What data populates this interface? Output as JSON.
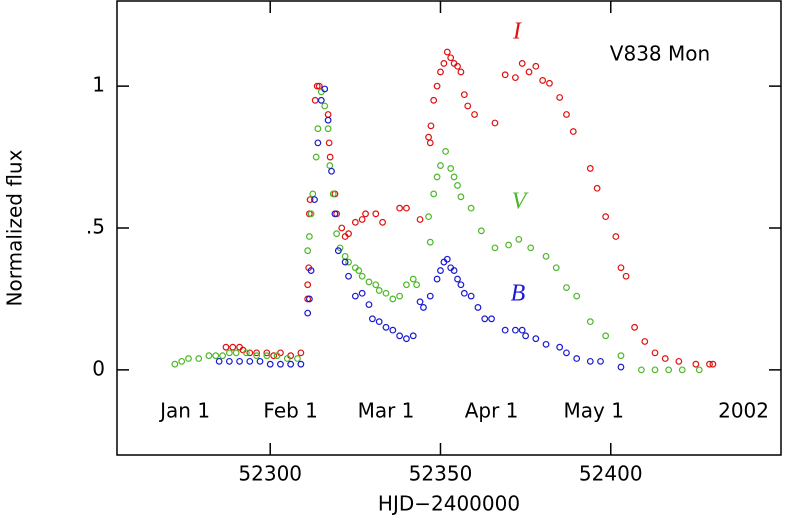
{
  "chart_data": {
    "type": "scatter",
    "annotation": "V838 Mon",
    "xlabel": "HJD−2400000",
    "ylabel": "Normalized flux",
    "xlim": [
      52255,
      52450
    ],
    "ylim": [
      -0.3,
      1.3
    ],
    "xticks": [
      52300,
      52350,
      52400
    ],
    "yticks": [
      0,
      {
        "value": 0.5,
        "label": ".5"
      },
      1
    ],
    "date_labels": [
      {
        "value": 52275,
        "label": "Jan 1"
      },
      {
        "value": 52306,
        "label": "Feb 1"
      },
      {
        "value": 52334,
        "label": "Mar 1"
      },
      {
        "value": 52365,
        "label": "Apr 1"
      },
      {
        "value": 52395,
        "label": "May 1"
      }
    ],
    "year_label": "2002",
    "series": [
      {
        "name": "I",
        "color": "#e01010",
        "x": [
          52287,
          52289,
          52291,
          52292,
          52294,
          52296,
          52299,
          52301,
          52303,
          52306,
          52309,
          52311,
          52311,
          52311.3,
          52311.5,
          52311.7,
          52313.2,
          52313.8,
          52314.4,
          52317,
          52317.3,
          52317.6,
          52319,
          52319.5,
          52321,
          52322,
          52323,
          52325,
          52327,
          52328,
          52331,
          52333,
          52338,
          52340,
          52344,
          52346.5,
          52347,
          52347.2,
          52348,
          52349,
          52350,
          52351,
          52352,
          52353,
          52354,
          52355,
          52356,
          52357,
          52358,
          52360,
          52366,
          52369,
          52372,
          52374,
          52376,
          52378,
          52380,
          52382,
          52385,
          52387,
          52389,
          52394,
          52396,
          52398.5,
          52401.5,
          52403,
          52404.5,
          52407,
          52410,
          52413,
          52416,
          52420,
          52425,
          52429,
          52430
        ],
        "values": [
          0.08,
          0.08,
          0.08,
          0.07,
          0.06,
          0.06,
          0.06,
          0.05,
          0.06,
          0.05,
          0.06,
          0.25,
          0.3,
          0.36,
          0.55,
          0.6,
          0.95,
          1.0,
          1.0,
          0.9,
          0.8,
          0.75,
          0.62,
          0.55,
          0.5,
          0.47,
          0.48,
          0.52,
          0.53,
          0.55,
          0.55,
          0.52,
          0.57,
          0.57,
          0.53,
          0.82,
          0.8,
          0.86,
          0.95,
          1.0,
          1.05,
          1.08,
          1.12,
          1.1,
          1.08,
          1.07,
          1.05,
          0.97,
          0.93,
          0.9,
          0.87,
          1.04,
          1.03,
          1.08,
          1.05,
          1.07,
          1.02,
          1.01,
          0.96,
          0.9,
          0.84,
          0.71,
          0.64,
          0.54,
          0.47,
          0.36,
          0.33,
          0.15,
          0.1,
          0.06,
          0.04,
          0.03,
          0.02,
          0.02,
          0.02
        ]
      },
      {
        "name": "V",
        "color": "#4cb828",
        "x": [
          52272,
          52274,
          52276,
          52279,
          52282,
          52284,
          52286,
          52288,
          52290,
          52293,
          52296,
          52299,
          52302,
          52305,
          52308,
          52311,
          52311.5,
          52312,
          52312.5,
          52313.5,
          52314,
          52315,
          52316,
          52317,
          52317.5,
          52318.5,
          52319.5,
          52320.5,
          52322,
          52323,
          52325,
          52326,
          52327,
          52329,
          52331,
          52332,
          52334,
          52336,
          52338,
          52340,
          52342,
          52343,
          52346.5,
          52347,
          52348,
          52349,
          52350,
          52351.5,
          52353,
          52354,
          52355,
          52356,
          52359,
          52362,
          52366,
          52370,
          52373,
          52376.5,
          52381,
          52384,
          52387,
          52390,
          52394,
          52398.5,
          52403,
          52409,
          52413,
          52417,
          52421,
          52426
        ],
        "values": [
          0.02,
          0.03,
          0.04,
          0.04,
          0.05,
          0.05,
          0.05,
          0.06,
          0.06,
          0.06,
          0.05,
          0.05,
          0.05,
          0.04,
          0.04,
          0.42,
          0.47,
          0.55,
          0.62,
          0.75,
          0.85,
          0.98,
          0.93,
          0.85,
          0.72,
          0.62,
          0.48,
          0.43,
          0.4,
          0.38,
          0.36,
          0.35,
          0.33,
          0.31,
          0.3,
          0.28,
          0.27,
          0.25,
          0.26,
          0.3,
          0.32,
          0.3,
          0.54,
          0.45,
          0.62,
          0.68,
          0.72,
          0.77,
          0.71,
          0.68,
          0.65,
          0.61,
          0.57,
          0.49,
          0.43,
          0.44,
          0.46,
          0.43,
          0.4,
          0.36,
          0.29,
          0.26,
          0.17,
          0.12,
          0.05,
          0.0,
          0.0,
          0.0,
          0.0,
          0.0
        ]
      },
      {
        "name": "B",
        "color": "#1a1ad0",
        "x": [
          52285,
          52288,
          52291,
          52294,
          52297,
          52300,
          52303,
          52306,
          52309,
          52311,
          52311.5,
          52312,
          52313,
          52314,
          52315,
          52316,
          52317,
          52318,
          52319,
          52320,
          52322,
          52323,
          52325,
          52327,
          52329,
          52330,
          52332,
          52334,
          52336,
          52338,
          52340,
          52342,
          52344,
          52345,
          52347,
          52349,
          52350,
          52351,
          52352,
          52353,
          52354,
          52355,
          52356,
          52357,
          52359,
          52361,
          52363,
          52365,
          52369,
          52372,
          52374,
          52375,
          52378,
          52381,
          52385,
          52387,
          52390,
          52394,
          52397,
          52403
        ],
        "values": [
          0.03,
          0.03,
          0.03,
          0.03,
          0.03,
          0.02,
          0.02,
          0.02,
          0.02,
          0.2,
          0.25,
          0.35,
          0.6,
          0.8,
          0.95,
          0.99,
          0.88,
          0.7,
          0.55,
          0.42,
          0.38,
          0.33,
          0.26,
          0.27,
          0.23,
          0.18,
          0.17,
          0.15,
          0.14,
          0.12,
          0.11,
          0.12,
          0.24,
          0.22,
          0.26,
          0.32,
          0.35,
          0.38,
          0.39,
          0.36,
          0.35,
          0.32,
          0.3,
          0.27,
          0.26,
          0.22,
          0.18,
          0.18,
          0.14,
          0.14,
          0.14,
          0.12,
          0.11,
          0.09,
          0.08,
          0.06,
          0.04,
          0.03,
          0.03,
          0.01
        ]
      }
    ]
  }
}
